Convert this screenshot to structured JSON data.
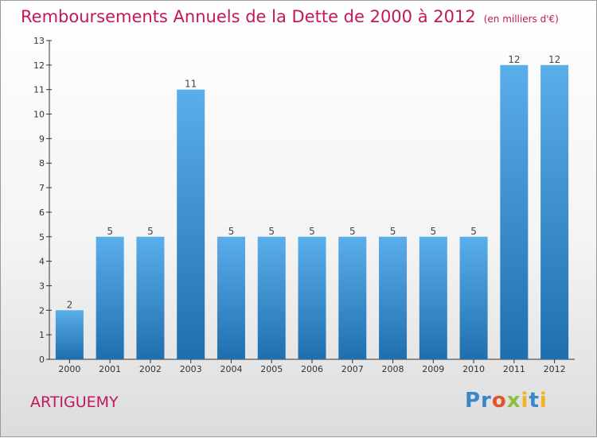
{
  "header": {
    "title": "Remboursements Annuels de la Dette de 2000 à 2012",
    "unit": "(en milliers d'€)"
  },
  "footer": {
    "commune": "ARTIGUEMY",
    "logo_text": "Proxiti"
  },
  "colors": {
    "title": "#c2185b",
    "bar_top": "#5aaeea",
    "bar_bottom": "#1f6fae",
    "axis": "#333333"
  },
  "chart_data": {
    "type": "bar",
    "title": "Remboursements Annuels de la Dette de 2000 à 2012",
    "subtitle": "(en milliers d'€)",
    "xlabel": "",
    "ylabel": "",
    "categories": [
      "2000",
      "2001",
      "2002",
      "2003",
      "2004",
      "2005",
      "2006",
      "2007",
      "2008",
      "2009",
      "2010",
      "2011",
      "2012"
    ],
    "values": [
      2,
      5,
      5,
      11,
      5,
      5,
      5,
      5,
      5,
      5,
      5,
      12,
      12
    ],
    "ylim": [
      0,
      13
    ],
    "yticks": [
      0,
      1,
      2,
      3,
      4,
      5,
      6,
      7,
      8,
      9,
      10,
      11,
      12,
      13
    ],
    "grid": false,
    "data_labels": true
  }
}
